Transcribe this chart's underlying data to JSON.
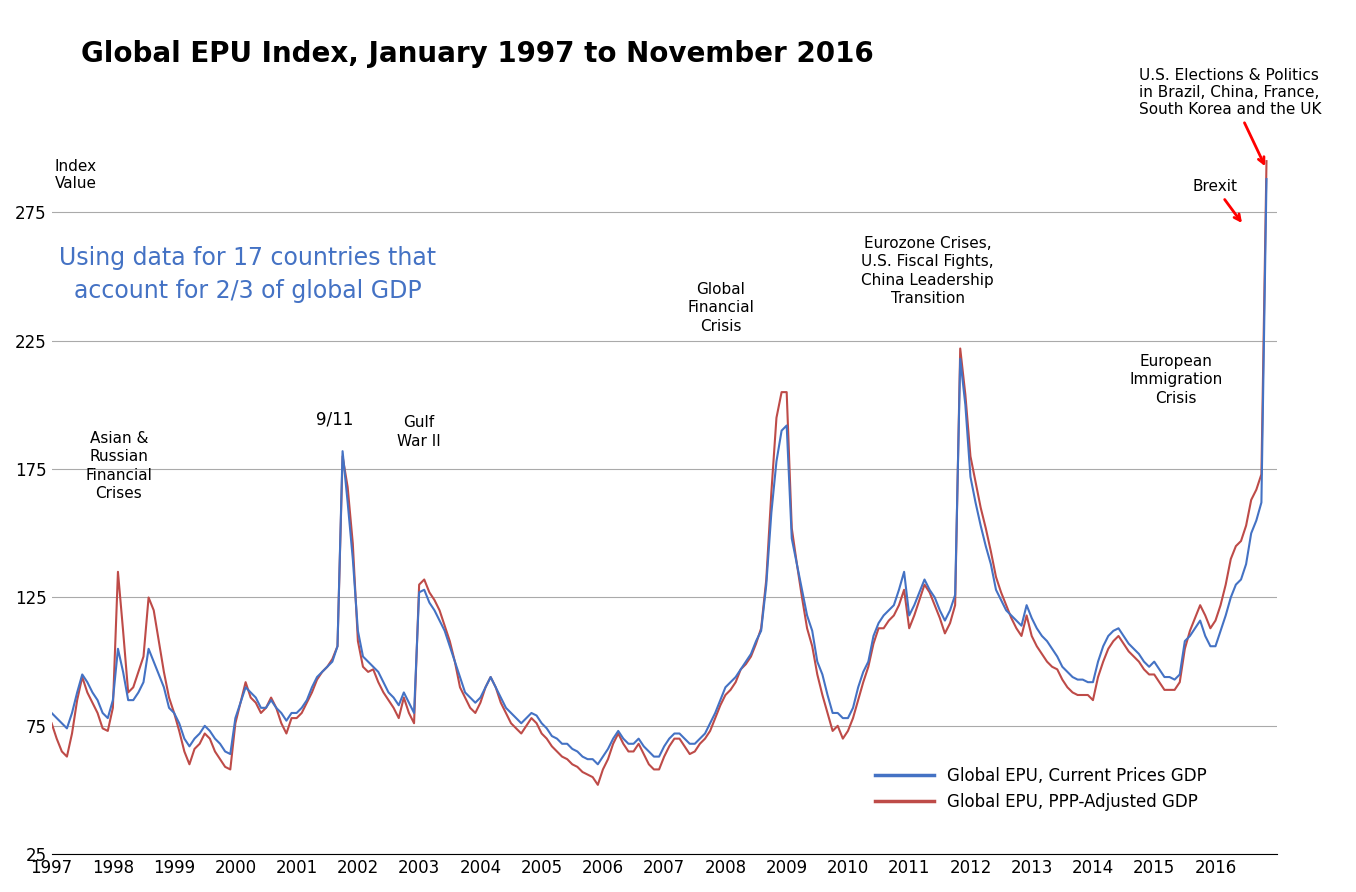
{
  "title": "Global EPU Index, January 1997 to November 2016",
  "ylim": [
    25,
    300
  ],
  "yticks": [
    25,
    75,
    125,
    175,
    225,
    275
  ],
  "xlim_start": 1997.0,
  "xlim_end": 2017.0,
  "xticks": [
    1997,
    1998,
    1999,
    2000,
    2001,
    2002,
    2003,
    2004,
    2005,
    2006,
    2007,
    2008,
    2009,
    2010,
    2011,
    2012,
    2013,
    2014,
    2015,
    2016
  ],
  "blue_color": "#4472C4",
  "red_color": "#BE4B48",
  "subtitle_text": "Using data for 17 countries that\naccount for 2/3 of global GDP",
  "subtitle_color": "#4472C4",
  "dates": [
    1997.0,
    1997.083,
    1997.167,
    1997.25,
    1997.333,
    1997.417,
    1997.5,
    1997.583,
    1997.667,
    1997.75,
    1997.833,
    1997.917,
    1998.0,
    1998.083,
    1998.167,
    1998.25,
    1998.333,
    1998.417,
    1998.5,
    1998.583,
    1998.667,
    1998.75,
    1998.833,
    1998.917,
    1999.0,
    1999.083,
    1999.167,
    1999.25,
    1999.333,
    1999.417,
    1999.5,
    1999.583,
    1999.667,
    1999.75,
    1999.833,
    1999.917,
    2000.0,
    2000.083,
    2000.167,
    2000.25,
    2000.333,
    2000.417,
    2000.5,
    2000.583,
    2000.667,
    2000.75,
    2000.833,
    2000.917,
    2001.0,
    2001.083,
    2001.167,
    2001.25,
    2001.333,
    2001.417,
    2001.5,
    2001.583,
    2001.667,
    2001.75,
    2001.833,
    2001.917,
    2002.0,
    2002.083,
    2002.167,
    2002.25,
    2002.333,
    2002.417,
    2002.5,
    2002.583,
    2002.667,
    2002.75,
    2002.833,
    2002.917,
    2003.0,
    2003.083,
    2003.167,
    2003.25,
    2003.333,
    2003.417,
    2003.5,
    2003.583,
    2003.667,
    2003.75,
    2003.833,
    2003.917,
    2004.0,
    2004.083,
    2004.167,
    2004.25,
    2004.333,
    2004.417,
    2004.5,
    2004.583,
    2004.667,
    2004.75,
    2004.833,
    2004.917,
    2005.0,
    2005.083,
    2005.167,
    2005.25,
    2005.333,
    2005.417,
    2005.5,
    2005.583,
    2005.667,
    2005.75,
    2005.833,
    2005.917,
    2006.0,
    2006.083,
    2006.167,
    2006.25,
    2006.333,
    2006.417,
    2006.5,
    2006.583,
    2006.667,
    2006.75,
    2006.833,
    2006.917,
    2007.0,
    2007.083,
    2007.167,
    2007.25,
    2007.333,
    2007.417,
    2007.5,
    2007.583,
    2007.667,
    2007.75,
    2007.833,
    2007.917,
    2008.0,
    2008.083,
    2008.167,
    2008.25,
    2008.333,
    2008.417,
    2008.5,
    2008.583,
    2008.667,
    2008.75,
    2008.833,
    2008.917,
    2009.0,
    2009.083,
    2009.167,
    2009.25,
    2009.333,
    2009.417,
    2009.5,
    2009.583,
    2009.667,
    2009.75,
    2009.833,
    2009.917,
    2010.0,
    2010.083,
    2010.167,
    2010.25,
    2010.333,
    2010.417,
    2010.5,
    2010.583,
    2010.667,
    2010.75,
    2010.833,
    2010.917,
    2011.0,
    2011.083,
    2011.167,
    2011.25,
    2011.333,
    2011.417,
    2011.5,
    2011.583,
    2011.667,
    2011.75,
    2011.833,
    2011.917,
    2012.0,
    2012.083,
    2012.167,
    2012.25,
    2012.333,
    2012.417,
    2012.5,
    2012.583,
    2012.667,
    2012.75,
    2012.833,
    2012.917,
    2013.0,
    2013.083,
    2013.167,
    2013.25,
    2013.333,
    2013.417,
    2013.5,
    2013.583,
    2013.667,
    2013.75,
    2013.833,
    2013.917,
    2014.0,
    2014.083,
    2014.167,
    2014.25,
    2014.333,
    2014.417,
    2014.5,
    2014.583,
    2014.667,
    2014.75,
    2014.833,
    2014.917,
    2015.0,
    2015.083,
    2015.167,
    2015.25,
    2015.333,
    2015.417,
    2015.5,
    2015.583,
    2015.667,
    2015.75,
    2015.833,
    2015.917,
    2016.0,
    2016.083,
    2016.167,
    2016.25,
    2016.333,
    2016.417,
    2016.5,
    2016.583,
    2016.667,
    2016.75,
    2016.833
  ],
  "blue_values": [
    80,
    78,
    76,
    74,
    80,
    88,
    95,
    92,
    88,
    85,
    80,
    78,
    85,
    105,
    96,
    85,
    85,
    88,
    92,
    105,
    100,
    95,
    90,
    82,
    80,
    76,
    70,
    67,
    70,
    72,
    75,
    73,
    70,
    68,
    65,
    64,
    78,
    84,
    90,
    88,
    86,
    82,
    82,
    85,
    82,
    80,
    77,
    80,
    80,
    82,
    85,
    90,
    94,
    96,
    98,
    100,
    106,
    182,
    162,
    140,
    112,
    102,
    100,
    98,
    96,
    92,
    88,
    86,
    83,
    88,
    84,
    80,
    127,
    128,
    123,
    120,
    116,
    112,
    106,
    100,
    94,
    88,
    86,
    84,
    86,
    90,
    94,
    90,
    86,
    82,
    80,
    78,
    76,
    78,
    80,
    79,
    76,
    74,
    71,
    70,
    68,
    68,
    66,
    65,
    63,
    62,
    62,
    60,
    63,
    66,
    70,
    73,
    70,
    68,
    68,
    70,
    67,
    65,
    63,
    63,
    67,
    70,
    72,
    72,
    70,
    68,
    68,
    70,
    72,
    76,
    80,
    85,
    90,
    92,
    94,
    97,
    100,
    103,
    108,
    112,
    130,
    158,
    178,
    190,
    192,
    148,
    138,
    128,
    118,
    112,
    100,
    95,
    87,
    80,
    80,
    78,
    78,
    82,
    90,
    96,
    100,
    110,
    115,
    118,
    120,
    122,
    128,
    135,
    118,
    122,
    127,
    132,
    128,
    125,
    120,
    116,
    120,
    126,
    218,
    200,
    172,
    162,
    153,
    145,
    138,
    128,
    124,
    120,
    118,
    116,
    114,
    122,
    117,
    113,
    110,
    108,
    105,
    102,
    98,
    96,
    94,
    93,
    93,
    92,
    92,
    100,
    106,
    110,
    112,
    113,
    110,
    107,
    105,
    103,
    100,
    98,
    100,
    97,
    94,
    94,
    93,
    95,
    108,
    110,
    113,
    116,
    110,
    106,
    106,
    112,
    118,
    125,
    130,
    132,
    138,
    150,
    155,
    162,
    288
  ],
  "red_values": [
    76,
    70,
    65,
    63,
    72,
    85,
    94,
    88,
    84,
    80,
    74,
    73,
    82,
    135,
    112,
    88,
    90,
    96,
    102,
    125,
    120,
    108,
    96,
    86,
    80,
    73,
    65,
    60,
    66,
    68,
    72,
    70,
    65,
    62,
    59,
    58,
    76,
    84,
    92,
    86,
    84,
    80,
    82,
    86,
    82,
    76,
    72,
    78,
    78,
    80,
    84,
    88,
    93,
    96,
    98,
    101,
    106,
    180,
    168,
    146,
    108,
    98,
    96,
    97,
    92,
    88,
    85,
    82,
    78,
    86,
    80,
    76,
    130,
    132,
    127,
    124,
    120,
    114,
    108,
    100,
    90,
    86,
    82,
    80,
    84,
    90,
    94,
    90,
    84,
    80,
    76,
    74,
    72,
    75,
    78,
    76,
    72,
    70,
    67,
    65,
    63,
    62,
    60,
    59,
    57,
    56,
    55,
    52,
    58,
    62,
    68,
    72,
    68,
    65,
    65,
    68,
    64,
    60,
    58,
    58,
    63,
    67,
    70,
    70,
    67,
    64,
    65,
    68,
    70,
    73,
    78,
    83,
    87,
    89,
    92,
    97,
    99,
    102,
    107,
    113,
    132,
    166,
    195,
    205,
    205,
    152,
    138,
    125,
    113,
    106,
    95,
    87,
    80,
    73,
    75,
    70,
    73,
    78,
    85,
    92,
    98,
    107,
    113,
    113,
    116,
    118,
    122,
    128,
    113,
    118,
    124,
    130,
    127,
    122,
    117,
    111,
    115,
    122,
    222,
    204,
    180,
    170,
    160,
    152,
    143,
    133,
    127,
    122,
    117,
    113,
    110,
    118,
    110,
    106,
    103,
    100,
    98,
    97,
    93,
    90,
    88,
    87,
    87,
    87,
    85,
    94,
    100,
    105,
    108,
    110,
    107,
    104,
    102,
    100,
    97,
    95,
    95,
    92,
    89,
    89,
    89,
    92,
    105,
    112,
    117,
    122,
    118,
    113,
    116,
    122,
    130,
    140,
    145,
    147,
    153,
    163,
    167,
    173,
    295
  ]
}
